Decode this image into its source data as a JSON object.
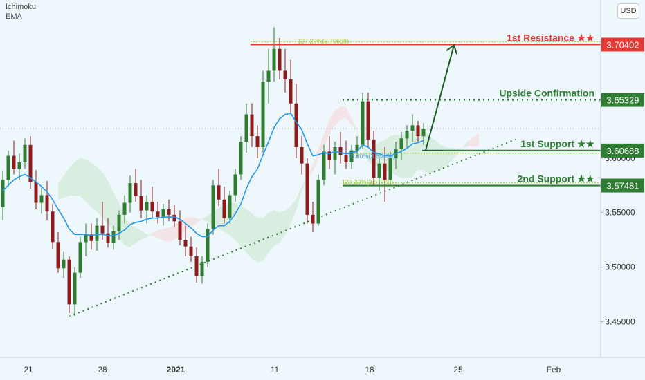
{
  "indicators": {
    "ichimoku": "Ichimoku",
    "ema": "EMA"
  },
  "currency": "USD",
  "colors": {
    "background": "#eef7fc",
    "up_candle": "#2e7d32",
    "down_candle": "#8e1b1b",
    "ema": "#2196f3",
    "cloud_bull": "#c8e6c9",
    "cloud_bear": "#f8d6d6",
    "resistance": "#e53935",
    "support": "#2e7d32",
    "fib": "#9ccc2a",
    "arrow": "#1b5e20"
  },
  "chart_data": {
    "type": "candlestick",
    "title": "",
    "x_tick_labels": [
      "21",
      "28",
      "2021",
      "11",
      "18",
      "25",
      "Feb"
    ],
    "y_ticks": [
      3.45,
      3.5,
      3.55,
      3.6
    ],
    "y_tick_labels": [
      "3.45000",
      "3.50000",
      "3.55000",
      "3.60000"
    ],
    "ylim": [
      3.4175,
      3.7385
    ],
    "grid": false,
    "levels": [
      {
        "label": "1st Resistance ★★",
        "price": 3.70402,
        "price_label": "3.70402",
        "kind": "resistance"
      },
      {
        "label": "Upside Confirmation",
        "price": 3.65329,
        "price_label": "3.65329",
        "kind": "confirmation"
      },
      {
        "label": "1st Support ★★",
        "price": 3.60688,
        "price_label": "3.60688",
        "kind": "support"
      },
      {
        "label": "2nd Support ★★",
        "price": 3.57481,
        "price_label": "3.57481",
        "kind": "support"
      }
    ],
    "fib_labels": [
      {
        "text": "127.20%(3.70658)",
        "price": 3.70658
      },
      {
        "text": "78.60%(3.60439)",
        "price": 3.60439
      },
      {
        "text": "127.20%(3.57723)",
        "price": 3.57723
      }
    ],
    "candles_ohlc": [
      [
        3.555,
        3.588,
        3.543,
        3.58
      ],
      [
        3.58,
        3.607,
        3.574,
        3.602
      ],
      [
        3.602,
        3.616,
        3.585,
        3.59
      ],
      [
        3.59,
        3.604,
        3.58,
        3.596
      ],
      [
        3.596,
        3.618,
        3.59,
        3.612
      ],
      [
        3.612,
        3.62,
        3.572,
        3.578
      ],
      [
        3.578,
        3.589,
        3.553,
        3.559
      ],
      [
        3.559,
        3.573,
        3.549,
        3.566
      ],
      [
        3.566,
        3.579,
        3.543,
        3.551
      ],
      [
        3.551,
        3.558,
        3.517,
        3.523
      ],
      [
        3.523,
        3.532,
        3.495,
        3.499
      ],
      [
        3.499,
        3.514,
        3.49,
        3.507
      ],
      [
        3.507,
        3.51,
        3.458,
        3.466
      ],
      [
        3.466,
        3.5,
        3.455,
        3.495
      ],
      [
        3.495,
        3.528,
        3.49,
        3.523
      ],
      [
        3.523,
        3.54,
        3.51,
        3.53
      ],
      [
        3.53,
        3.54,
        3.516,
        3.524
      ],
      [
        3.524,
        3.545,
        3.515,
        3.538
      ],
      [
        3.538,
        3.56,
        3.525,
        3.531
      ],
      [
        3.531,
        3.545,
        3.518,
        3.522
      ],
      [
        3.522,
        3.538,
        3.516,
        3.533
      ],
      [
        3.533,
        3.552,
        3.525,
        3.548
      ],
      [
        3.548,
        3.566,
        3.54,
        3.559
      ],
      [
        3.559,
        3.584,
        3.55,
        3.577
      ],
      [
        3.577,
        3.59,
        3.56,
        3.565
      ],
      [
        3.565,
        3.58,
        3.545,
        3.552
      ],
      [
        3.552,
        3.566,
        3.54,
        3.56
      ],
      [
        3.56,
        3.574,
        3.545,
        3.551
      ],
      [
        3.551,
        3.56,
        3.54,
        3.546
      ],
      [
        3.546,
        3.558,
        3.538,
        3.553
      ],
      [
        3.553,
        3.562,
        3.542,
        3.548
      ],
      [
        3.548,
        3.557,
        3.537,
        3.542
      ],
      [
        3.542,
        3.552,
        3.52,
        3.525
      ],
      [
        3.525,
        3.538,
        3.51,
        3.519
      ],
      [
        3.519,
        3.528,
        3.505,
        3.51
      ],
      [
        3.51,
        3.518,
        3.486,
        3.492
      ],
      [
        3.492,
        3.51,
        3.485,
        3.505
      ],
      [
        3.505,
        3.54,
        3.5,
        3.535
      ],
      [
        3.535,
        3.58,
        3.53,
        3.575
      ],
      [
        3.575,
        3.59,
        3.556,
        3.562
      ],
      [
        3.562,
        3.574,
        3.54,
        3.545
      ],
      [
        3.545,
        3.57,
        3.54,
        3.566
      ],
      [
        3.566,
        3.59,
        3.56,
        3.585
      ],
      [
        3.585,
        3.62,
        3.58,
        3.615
      ],
      [
        3.615,
        3.65,
        3.605,
        3.64
      ],
      [
        3.64,
        3.65,
        3.61,
        3.62
      ],
      [
        3.62,
        3.63,
        3.6,
        3.61
      ],
      [
        3.61,
        3.68,
        3.605,
        3.67
      ],
      [
        3.67,
        3.7,
        3.65,
        3.68
      ],
      [
        3.68,
        3.72,
        3.67,
        3.7
      ],
      [
        3.7,
        3.71,
        3.672,
        3.68
      ],
      [
        3.68,
        3.7,
        3.66,
        3.672
      ],
      [
        3.672,
        3.69,
        3.64,
        3.65
      ],
      [
        3.65,
        3.668,
        3.6,
        3.61
      ],
      [
        3.61,
        3.62,
        3.585,
        3.595
      ],
      [
        3.595,
        3.6,
        3.54,
        3.548
      ],
      [
        3.548,
        3.56,
        3.532,
        3.54
      ],
      [
        3.54,
        3.585,
        3.538,
        3.58
      ],
      [
        3.58,
        3.612,
        3.575,
        3.606
      ],
      [
        3.606,
        3.62,
        3.59,
        3.598
      ],
      [
        3.598,
        3.615,
        3.585,
        3.61
      ],
      [
        3.61,
        3.624,
        3.595,
        3.603
      ],
      [
        3.603,
        3.616,
        3.59,
        3.596
      ],
      [
        3.596,
        3.612,
        3.59,
        3.607
      ],
      [
        3.607,
        3.62,
        3.6,
        3.612
      ],
      [
        3.612,
        3.66,
        3.608,
        3.652
      ],
      [
        3.652,
        3.66,
        3.61,
        3.617
      ],
      [
        3.617,
        3.625,
        3.575,
        3.582
      ],
      [
        3.582,
        3.6,
        3.57,
        3.595
      ],
      [
        3.595,
        3.61,
        3.56,
        3.58
      ],
      [
        3.58,
        3.606,
        3.575,
        3.6
      ],
      [
        3.6,
        3.615,
        3.59,
        3.608
      ],
      [
        3.608,
        3.624,
        3.598,
        3.618
      ],
      [
        3.618,
        3.63,
        3.61,
        3.625
      ],
      [
        3.625,
        3.64,
        3.615,
        3.63
      ],
      [
        3.63,
        3.634,
        3.615,
        3.62
      ],
      [
        3.62,
        3.632,
        3.612,
        3.627
      ]
    ],
    "ema": [
      3.57,
      3.575,
      3.58,
      3.583,
      3.585,
      3.582,
      3.578,
      3.574,
      3.569,
      3.562,
      3.553,
      3.545,
      3.535,
      3.53,
      3.53,
      3.53,
      3.529,
      3.53,
      3.53,
      3.529,
      3.529,
      3.531,
      3.534,
      3.539,
      3.541,
      3.542,
      3.544,
      3.545,
      3.545,
      3.546,
      3.546,
      3.546,
      3.544,
      3.54,
      3.536,
      3.531,
      3.528,
      3.528,
      3.534,
      3.538,
      3.538,
      3.542,
      3.549,
      3.558,
      3.572,
      3.583,
      3.59,
      3.603,
      3.615,
      3.628,
      3.636,
      3.64,
      3.641,
      3.633,
      3.626,
      3.613,
      3.602,
      3.603,
      3.605,
      3.604,
      3.606,
      3.605,
      3.604,
      3.605,
      3.606,
      3.612,
      3.61,
      3.605,
      3.604,
      3.602,
      3.602,
      3.604,
      3.606,
      3.609,
      3.613,
      3.614,
      3.616
    ]
  }
}
